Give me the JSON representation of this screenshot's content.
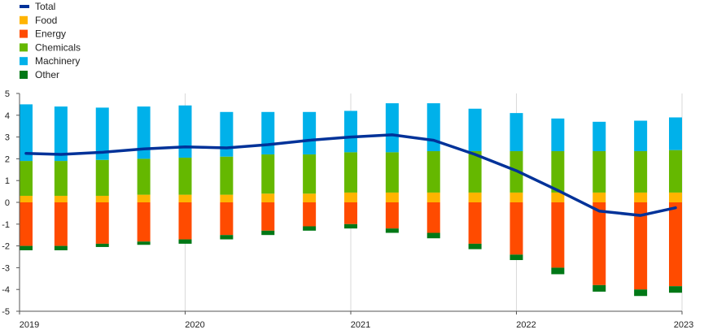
{
  "chart_data": {
    "type": "bar",
    "stacked": true,
    "grid": "vertical",
    "legend_position": "top-left",
    "ylim": [
      -5,
      5
    ],
    "yticks": [
      -5,
      -4,
      -3,
      -2,
      -1,
      0,
      1,
      2,
      3,
      4,
      5
    ],
    "x_tick_labels": [
      "2019",
      "2020",
      "2021",
      "2022",
      "2023"
    ],
    "periods": [
      "2019Q1",
      "2019Q2",
      "2019Q3",
      "2019Q4",
      "2020Q1",
      "2020Q2",
      "2020Q3",
      "2020Q4",
      "2021Q1",
      "2021Q2",
      "2021Q3",
      "2021Q4",
      "2022Q1",
      "2022Q2",
      "2022Q3",
      "2022Q4",
      "2023Q1"
    ],
    "series": [
      {
        "name": "Food",
        "color": "#ffb400",
        "values": [
          0.3,
          0.3,
          0.3,
          0.35,
          0.35,
          0.35,
          0.4,
          0.4,
          0.45,
          0.45,
          0.45,
          0.45,
          0.45,
          0.45,
          0.45,
          0.45,
          0.45
        ]
      },
      {
        "name": "Energy",
        "color": "#ff4b00",
        "values": [
          -2.0,
          -2.0,
          -1.9,
          -1.8,
          -1.7,
          -1.5,
          -1.3,
          -1.1,
          -1.0,
          -1.2,
          -1.4,
          -1.9,
          -2.4,
          -3.0,
          -3.8,
          -4.0,
          -3.85
        ]
      },
      {
        "name": "Chemicals",
        "color": "#65b800",
        "values": [
          1.6,
          1.6,
          1.65,
          1.65,
          1.7,
          1.75,
          1.8,
          1.8,
          1.85,
          1.85,
          1.9,
          1.9,
          1.9,
          1.9,
          1.9,
          1.9,
          1.95
        ]
      },
      {
        "name": "Machinery",
        "color": "#00b1ea",
        "values": [
          2.6,
          2.5,
          2.4,
          2.4,
          2.4,
          2.05,
          1.95,
          1.95,
          1.9,
          2.25,
          2.2,
          1.95,
          1.75,
          1.5,
          1.35,
          1.4,
          1.5
        ]
      },
      {
        "name": "Other",
        "color": "#007816",
        "values": [
          -0.2,
          -0.2,
          -0.15,
          -0.15,
          -0.2,
          -0.2,
          -0.2,
          -0.2,
          -0.2,
          -0.2,
          -0.25,
          -0.25,
          -0.25,
          -0.3,
          -0.3,
          -0.3,
          -0.3
        ]
      }
    ],
    "line": {
      "name": "Total",
      "color": "#003299",
      "values": [
        2.25,
        2.2,
        2.3,
        2.45,
        2.55,
        2.5,
        2.65,
        2.85,
        3.0,
        3.1,
        2.85,
        2.2,
        1.45,
        0.55,
        -0.4,
        -0.6,
        -0.25
      ]
    },
    "legend": [
      {
        "name": "Total",
        "color": "#003299",
        "kind": "line"
      },
      {
        "name": "Food",
        "color": "#ffb400",
        "kind": "box"
      },
      {
        "name": "Energy",
        "color": "#ff4b00",
        "kind": "box"
      },
      {
        "name": "Chemicals",
        "color": "#65b800",
        "kind": "box"
      },
      {
        "name": "Machinery",
        "color": "#00b1ea",
        "kind": "box"
      },
      {
        "name": "Other",
        "color": "#007816",
        "kind": "box"
      }
    ]
  }
}
